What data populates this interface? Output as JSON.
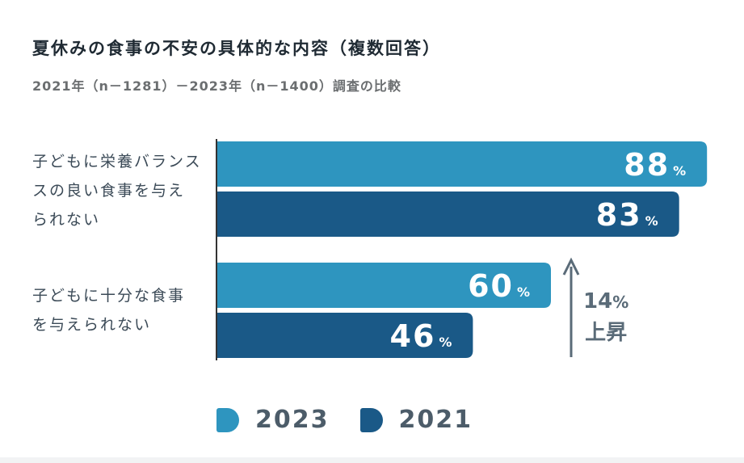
{
  "header": {
    "title": "夏休みの食事の不安の具体的な内容（複数回答）",
    "subtitle": "2021年（n－1281）－2023年（n－1400）調査の比較"
  },
  "chart_data": {
    "type": "bar",
    "orientation": "horizontal",
    "categories": [
      [
        "子どもに栄養バランス",
        "スの良い食事を与え",
        "られない"
      ],
      [
        "子どもに十分な食事",
        "を与えられない"
      ]
    ],
    "series": [
      {
        "name": "2023",
        "values": [
          88,
          60
        ],
        "color": "#2e95bf"
      },
      {
        "name": "2021",
        "values": [
          83,
          46
        ],
        "color": "#1a5987"
      }
    ],
    "value_suffix": "%",
    "xlim": [
      0,
      100
    ],
    "grid": false,
    "legend_position": "bottom",
    "annotation": {
      "value": "14",
      "unit": "%",
      "label": "上昇",
      "color": "#5a6b78"
    }
  }
}
